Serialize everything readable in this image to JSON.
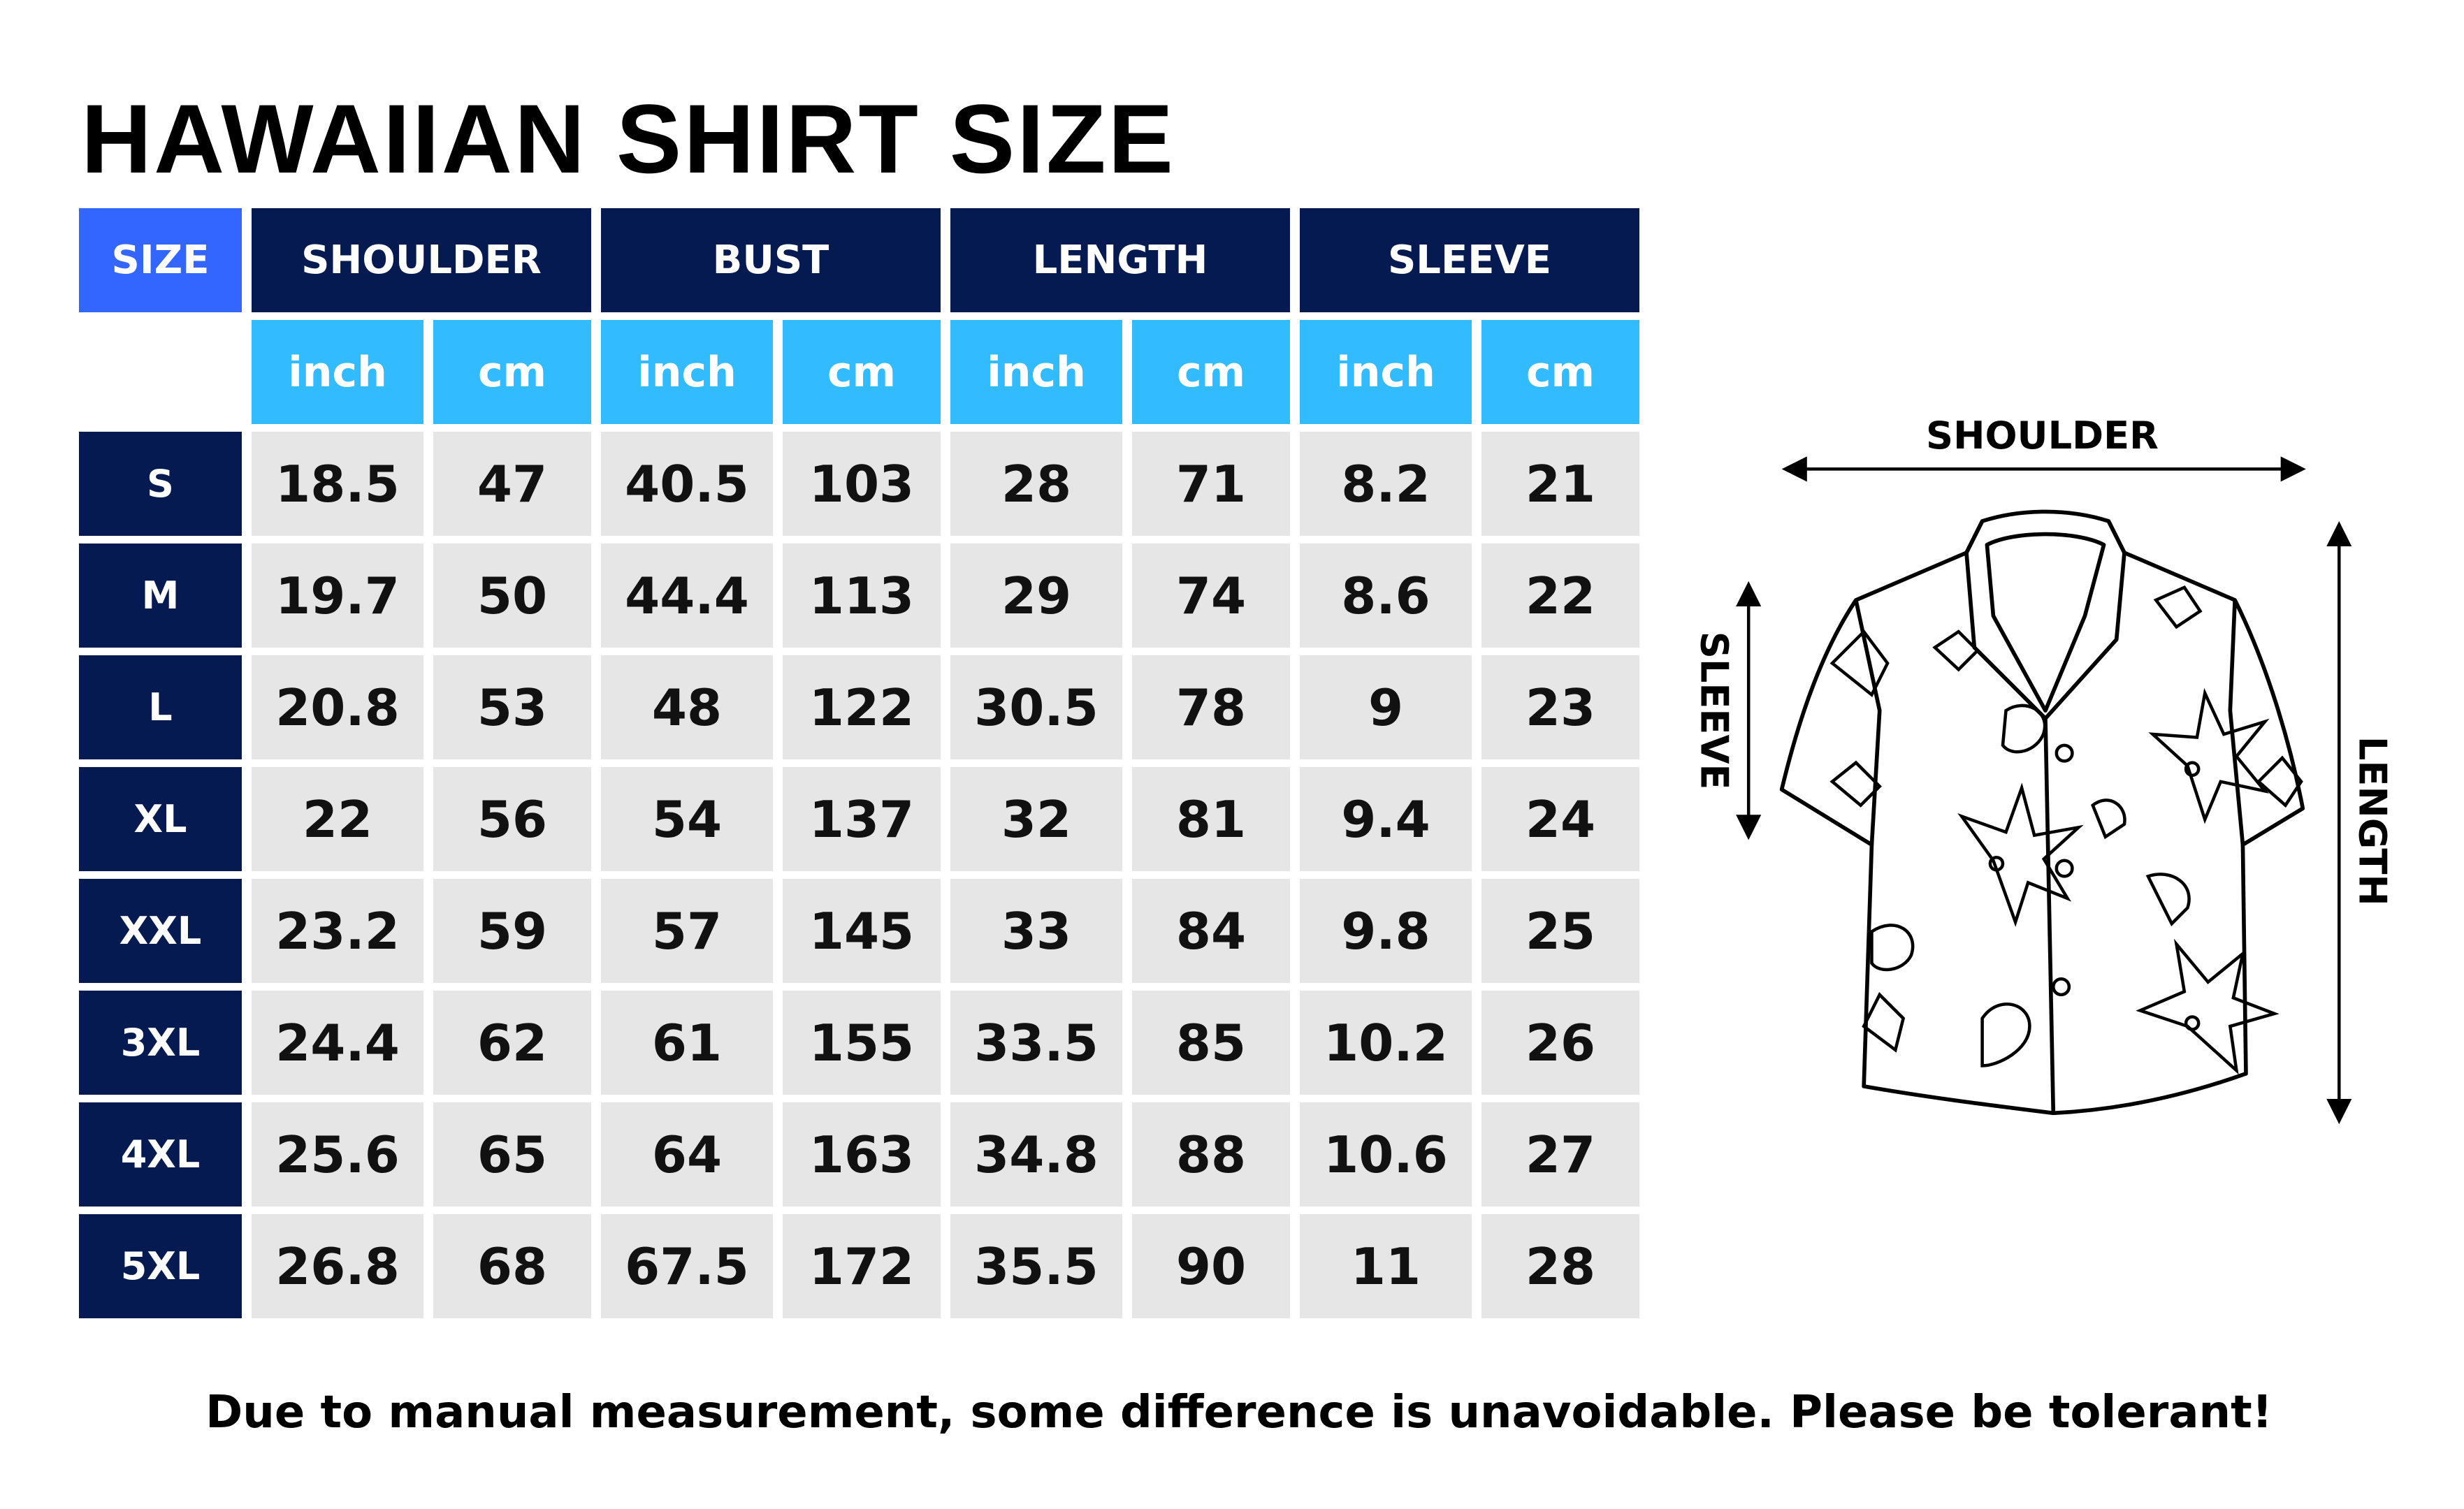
{
  "title": "HAWAIIAN SHIRT SIZE",
  "colors": {
    "size_header": "#3366ff",
    "navy": "#061a52",
    "unit_header": "#33bbff",
    "cell_bg": "#e6e6e6"
  },
  "table": {
    "size_label": "SIZE",
    "groups": [
      "SHOULDER",
      "BUST",
      "LENGTH",
      "SLEEVE"
    ],
    "units": [
      "inch",
      "cm",
      "inch",
      "cm",
      "inch",
      "cm",
      "inch",
      "cm"
    ],
    "rows": [
      {
        "size": "S",
        "values": [
          "18.5",
          "47",
          "40.5",
          "103",
          "28",
          "71",
          "8.2",
          "21"
        ]
      },
      {
        "size": "M",
        "values": [
          "19.7",
          "50",
          "44.4",
          "113",
          "29",
          "74",
          "8.6",
          "22"
        ]
      },
      {
        "size": "L",
        "values": [
          "20.8",
          "53",
          "48",
          "122",
          "30.5",
          "78",
          "9",
          "23"
        ]
      },
      {
        "size": "XL",
        "values": [
          "22",
          "56",
          "54",
          "137",
          "32",
          "81",
          "9.4",
          "24"
        ]
      },
      {
        "size": "XXL",
        "values": [
          "23.2",
          "59",
          "57",
          "145",
          "33",
          "84",
          "9.8",
          "25"
        ]
      },
      {
        "size": "3XL",
        "values": [
          "24.4",
          "62",
          "61",
          "155",
          "33.5",
          "85",
          "10.2",
          "26"
        ]
      },
      {
        "size": "4XL",
        "values": [
          "25.6",
          "65",
          "64",
          "163",
          "34.8",
          "88",
          "10.6",
          "27"
        ]
      },
      {
        "size": "5XL",
        "values": [
          "26.8",
          "68",
          "67.5",
          "172",
          "35.5",
          "90",
          "11",
          "28"
        ]
      }
    ]
  },
  "diagram": {
    "shoulder_label": "SHOULDER",
    "sleeve_label": "SLEEVE",
    "length_label": "LENGTH"
  },
  "note": "Due to manual measurement, some difference is unavoidable. Please be tolerant!"
}
